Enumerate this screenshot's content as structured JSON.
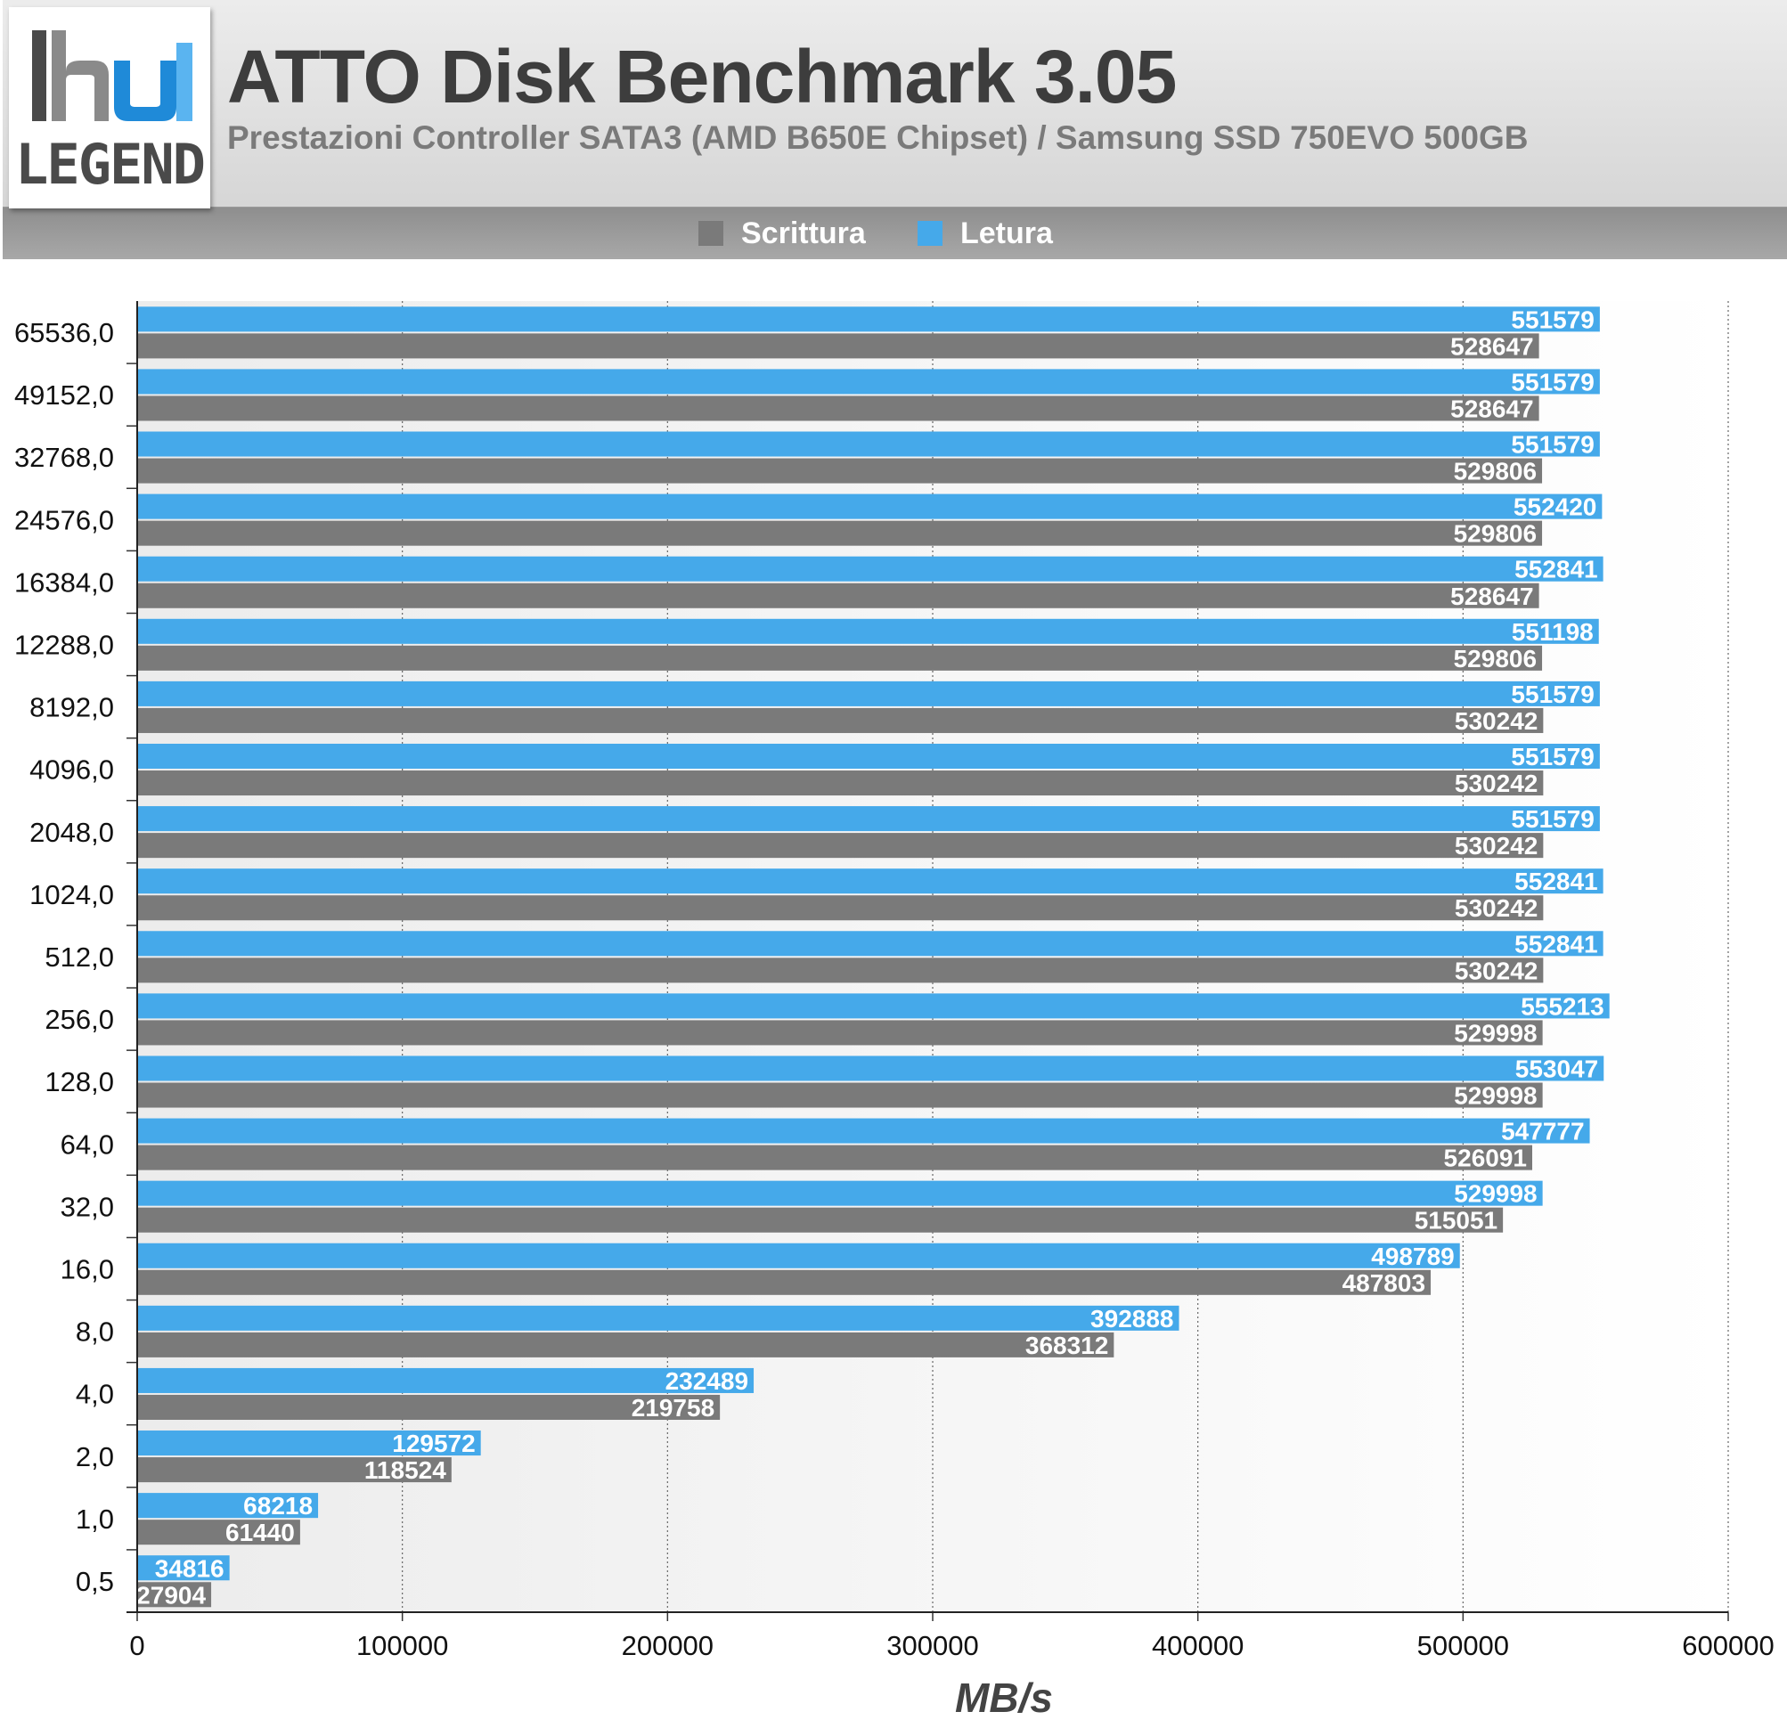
{
  "header": {
    "title": "ATTO Disk Benchmark 3.05",
    "subtitle": "Prestazioni Controller SATA3 (AMD B650E Chipset) / Samsung SSD 750EVO 500GB",
    "logo_text": "LEGEND"
  },
  "legend": {
    "write_label": "Scrittura",
    "read_label": "Letura"
  },
  "colors": {
    "write": "#7a7a7a",
    "read": "#45a9ea",
    "logo_blue": "#1f8ad8"
  },
  "chart_data": {
    "type": "bar",
    "orientation": "horizontal",
    "categories": [
      "65536,0",
      "49152,0",
      "32768,0",
      "24576,0",
      "16384,0",
      "12288,0",
      "8192,0",
      "4096,0",
      "2048,0",
      "1024,0",
      "512,0",
      "256,0",
      "128,0",
      "64,0",
      "32,0",
      "16,0",
      "8,0",
      "4,0",
      "2,0",
      "1,0",
      "0,5"
    ],
    "series": [
      {
        "name": "Letura",
        "values": [
          551579,
          551579,
          551579,
          552420,
          552841,
          551198,
          551579,
          551579,
          551579,
          552841,
          552841,
          555213,
          553047,
          547777,
          529998,
          498789,
          392888,
          232489,
          129572,
          68218,
          34816
        ]
      },
      {
        "name": "Scrittura",
        "values": [
          528647,
          528647,
          529806,
          529806,
          528647,
          529806,
          530242,
          530242,
          530242,
          530242,
          530242,
          529998,
          529998,
          526091,
          515051,
          487803,
          368312,
          219758,
          118524,
          61440,
          27904
        ]
      }
    ],
    "xlabel": "MB/s",
    "ylabel": "",
    "xlim": [
      0,
      600000
    ],
    "xticks": [
      0,
      100000,
      200000,
      300000,
      400000,
      500000,
      600000
    ],
    "grid": true,
    "legend_position": "top"
  }
}
